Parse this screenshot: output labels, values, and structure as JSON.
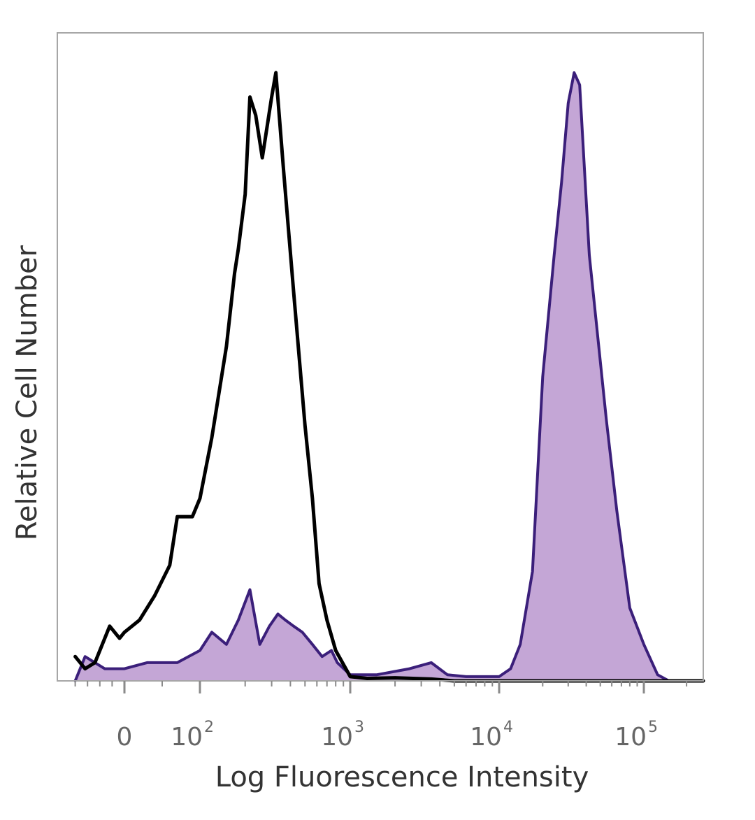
{
  "chart_data": {
    "type": "area",
    "xlabel": "Log Fluorescence Intensity",
    "ylabel": "Relative Cell Number",
    "x_scale": "biexponential",
    "xlim": [
      -250,
      262144
    ],
    "ylim": [
      0,
      100
    ],
    "grid": false,
    "legend": "none",
    "x_tick_labels": [
      {
        "value": 0,
        "base": "0",
        "exp": ""
      },
      {
        "value": 100,
        "base": "10",
        "exp": "2"
      },
      {
        "value": 1000,
        "base": "10",
        "exp": "3"
      },
      {
        "value": 10000,
        "base": "10",
        "exp": "4"
      },
      {
        "value": 100000,
        "base": "10",
        "exp": "5"
      }
    ],
    "series": [
      {
        "style": "filled",
        "color": "#3b1f7a",
        "fill": "#c4a6d6",
        "points": [
          [
            -200,
            0
          ],
          [
            -160,
            4
          ],
          [
            -120,
            3
          ],
          [
            -80,
            2
          ],
          [
            -40,
            2
          ],
          [
            0,
            2
          ],
          [
            30,
            3
          ],
          [
            70,
            3
          ],
          [
            100,
            5
          ],
          [
            120,
            8
          ],
          [
            150,
            6
          ],
          [
            180,
            10
          ],
          [
            215,
            15
          ],
          [
            250,
            6
          ],
          [
            290,
            9
          ],
          [
            330,
            11
          ],
          [
            370,
            10
          ],
          [
            420,
            9
          ],
          [
            480,
            8
          ],
          [
            560,
            6
          ],
          [
            650,
            4
          ],
          [
            750,
            5
          ],
          [
            820,
            3
          ],
          [
            1000,
            1
          ],
          [
            1500,
            1
          ],
          [
            2500,
            2
          ],
          [
            3500,
            3
          ],
          [
            4500,
            1
          ],
          [
            6000,
            0.7
          ],
          [
            10000,
            0.7
          ],
          [
            12000,
            2
          ],
          [
            14000,
            6
          ],
          [
            17000,
            18
          ],
          [
            20000,
            50
          ],
          [
            24000,
            70
          ],
          [
            27000,
            82
          ],
          [
            30000,
            95
          ],
          [
            33000,
            100
          ],
          [
            36000,
            98
          ],
          [
            42000,
            70
          ],
          [
            55000,
            43
          ],
          [
            65000,
            28
          ],
          [
            80000,
            12
          ],
          [
            100000,
            6
          ],
          [
            125000,
            1
          ],
          [
            150000,
            0
          ],
          [
            200000,
            0
          ],
          [
            262144,
            0
          ]
        ]
      },
      {
        "style": "line",
        "color": "#000000",
        "points": [
          [
            -200,
            4
          ],
          [
            -160,
            2
          ],
          [
            -120,
            3
          ],
          [
            -60,
            9
          ],
          [
            -20,
            7
          ],
          [
            0,
            8
          ],
          [
            20,
            10
          ],
          [
            40,
            14
          ],
          [
            60,
            19
          ],
          [
            70,
            27
          ],
          [
            90,
            27
          ],
          [
            100,
            30
          ],
          [
            120,
            40
          ],
          [
            150,
            55
          ],
          [
            170,
            67
          ],
          [
            180,
            71
          ],
          [
            200,
            80
          ],
          [
            215,
            96
          ],
          [
            235,
            93
          ],
          [
            260,
            86
          ],
          [
            300,
            96
          ],
          [
            320,
            100
          ],
          [
            360,
            84
          ],
          [
            420,
            64
          ],
          [
            500,
            42
          ],
          [
            560,
            30
          ],
          [
            620,
            16
          ],
          [
            700,
            10
          ],
          [
            800,
            5
          ],
          [
            1000,
            0.7
          ],
          [
            1300,
            0.4
          ],
          [
            2000,
            0.5
          ],
          [
            3500,
            0.3
          ],
          [
            5000,
            0
          ],
          [
            10000,
            0
          ],
          [
            262144,
            0
          ]
        ]
      }
    ]
  }
}
